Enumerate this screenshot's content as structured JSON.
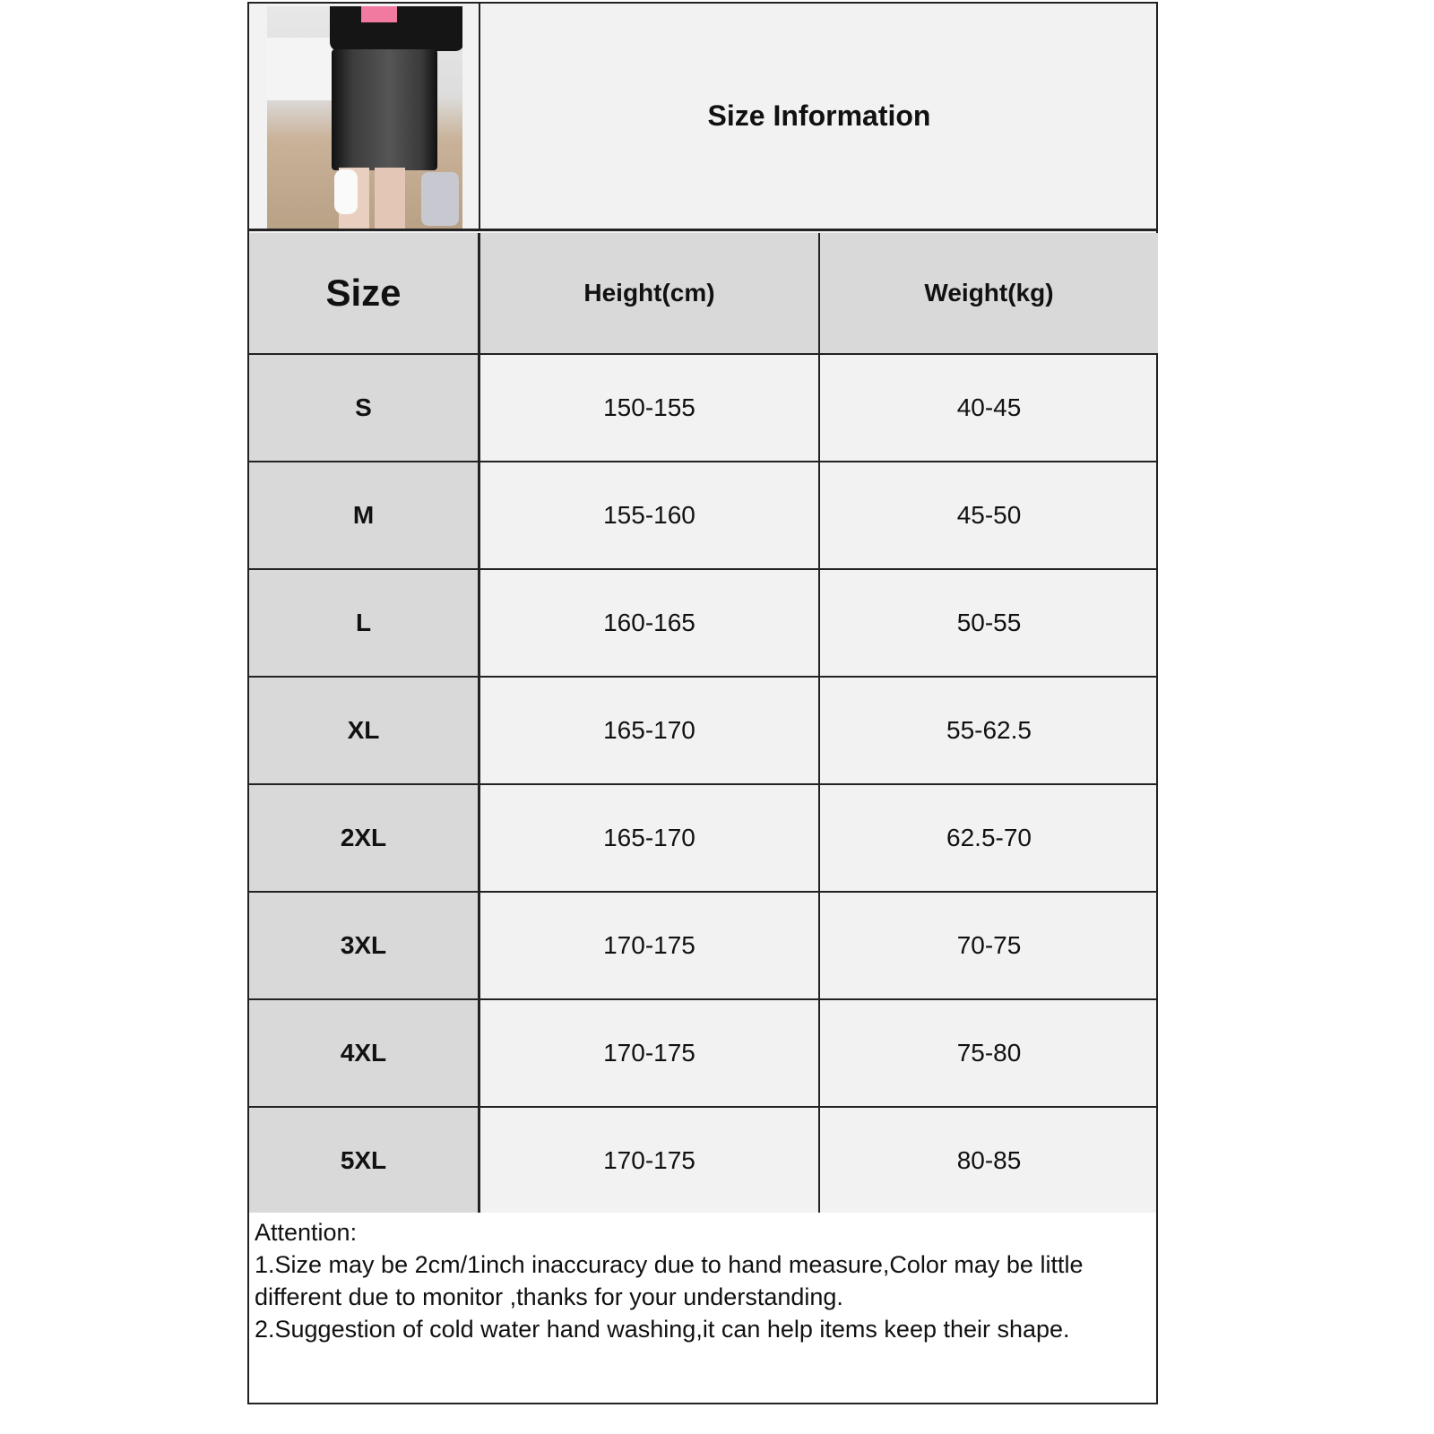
{
  "title": "Size Information",
  "table": {
    "headers": [
      "Size",
      "Height(cm)",
      "Weight(kg)"
    ],
    "rows": [
      [
        "S",
        "150-155",
        "40-45"
      ],
      [
        "M",
        "155-160",
        "45-50"
      ],
      [
        "L",
        "160-165",
        "50-55"
      ],
      [
        "XL",
        "165-170",
        "55-62.5"
      ],
      [
        "2XL",
        "165-170",
        "62.5-70"
      ],
      [
        "3XL",
        "170-175",
        "70-75"
      ],
      [
        "4XL",
        "170-175",
        "75-80"
      ],
      [
        "5XL",
        "170-175",
        "80-85"
      ]
    ]
  },
  "notes": {
    "heading": "Attention:",
    "lines": [
      "1.Size may be 2cm/1inch inaccuracy due to hand measure,Color may be little different due to monitor ,thanks for your understanding.",
      "2.Suggestion of cold water hand washing,it can help items keep their shape."
    ]
  },
  "colors": {
    "header_bg": "#d9d9d9",
    "cell_bg": "#f2f2f2",
    "border": "#222222"
  }
}
